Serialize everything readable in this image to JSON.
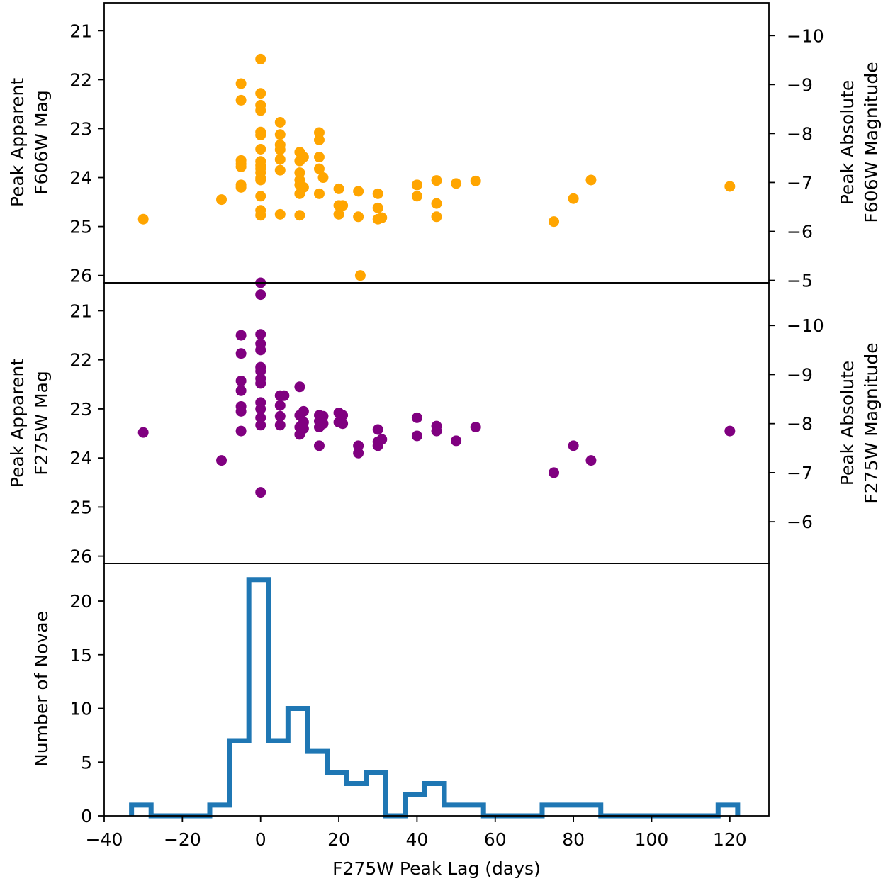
{
  "chart_data": [
    {
      "type": "scatter",
      "ylabel": [
        "Peak Apparent",
        "F606W Mag"
      ],
      "ylabel_right": [
        "Peak Absolute",
        "F606W Magnitude"
      ],
      "ylim": [
        26.15,
        20.43
      ],
      "ylim_right": [
        -4.95,
        -10.67
      ],
      "inverted_y": true,
      "yticks": [
        21,
        22,
        23,
        24,
        25,
        26
      ],
      "yticks_right": [
        -10,
        -9,
        -8,
        -7,
        -6,
        -5
      ],
      "yticks_right_labels": [
        "−10",
        "−9",
        "−8",
        "−7",
        "−6",
        "−5"
      ],
      "color": "#FFA500",
      "points": [
        {
          "x": -30,
          "y": 24.85
        },
        {
          "x": -10,
          "y": 24.45
        },
        {
          "x": -5,
          "y": 22.08
        },
        {
          "x": -5,
          "y": 22.42
        },
        {
          "x": -5,
          "y": 23.65
        },
        {
          "x": -5,
          "y": 23.72
        },
        {
          "x": -5,
          "y": 23.78
        },
        {
          "x": -5,
          "y": 24.15
        },
        {
          "x": -5,
          "y": 24.2
        },
        {
          "x": 0,
          "y": 21.58
        },
        {
          "x": 0,
          "y": 22.28
        },
        {
          "x": 0,
          "y": 22.52
        },
        {
          "x": 0,
          "y": 22.63
        },
        {
          "x": 0,
          "y": 23.07
        },
        {
          "x": 0,
          "y": 23.13
        },
        {
          "x": 0,
          "y": 23.42
        },
        {
          "x": 0,
          "y": 23.67
        },
        {
          "x": 0,
          "y": 23.75
        },
        {
          "x": 0,
          "y": 23.82
        },
        {
          "x": 0,
          "y": 23.9
        },
        {
          "x": 0,
          "y": 24.01
        },
        {
          "x": 0,
          "y": 24.05
        },
        {
          "x": 0,
          "y": 24.38
        },
        {
          "x": 0,
          "y": 24.67
        },
        {
          "x": 0,
          "y": 24.77
        },
        {
          "x": 5,
          "y": 22.87
        },
        {
          "x": 5,
          "y": 23.12
        },
        {
          "x": 5,
          "y": 23.33
        },
        {
          "x": 5,
          "y": 23.43
        },
        {
          "x": 5,
          "y": 23.63
        },
        {
          "x": 5,
          "y": 23.85
        },
        {
          "x": 5,
          "y": 24.75
        },
        {
          "x": 10,
          "y": 23.48
        },
        {
          "x": 10,
          "y": 23.66
        },
        {
          "x": 10,
          "y": 23.9
        },
        {
          "x": 10,
          "y": 24.05
        },
        {
          "x": 10,
          "y": 24.15
        },
        {
          "x": 10,
          "y": 24.33
        },
        {
          "x": 10,
          "y": 24.77
        },
        {
          "x": 11,
          "y": 23.58
        },
        {
          "x": 11,
          "y": 24.2
        },
        {
          "x": 15,
          "y": 23.08
        },
        {
          "x": 15,
          "y": 23.23
        },
        {
          "x": 15,
          "y": 23.58
        },
        {
          "x": 15,
          "y": 23.82
        },
        {
          "x": 15,
          "y": 24.33
        },
        {
          "x": 16,
          "y": 24.0
        },
        {
          "x": 20,
          "y": 24.23
        },
        {
          "x": 20,
          "y": 24.57
        },
        {
          "x": 20,
          "y": 24.75
        },
        {
          "x": 21,
          "y": 24.57
        },
        {
          "x": 25,
          "y": 24.28
        },
        {
          "x": 25,
          "y": 24.8
        },
        {
          "x": 25.5,
          "y": 26.0
        },
        {
          "x": 30,
          "y": 24.33
        },
        {
          "x": 30,
          "y": 24.62
        },
        {
          "x": 30,
          "y": 24.85
        },
        {
          "x": 31,
          "y": 24.82
        },
        {
          "x": 40,
          "y": 24.15
        },
        {
          "x": 40,
          "y": 24.38
        },
        {
          "x": 45,
          "y": 24.06
        },
        {
          "x": 45,
          "y": 24.53
        },
        {
          "x": 45,
          "y": 24.8
        },
        {
          "x": 50,
          "y": 24.12
        },
        {
          "x": 55,
          "y": 24.07
        },
        {
          "x": 75,
          "y": 24.9
        },
        {
          "x": 80,
          "y": 24.43
        },
        {
          "x": 84.5,
          "y": 24.05
        },
        {
          "x": 120,
          "y": 24.18
        }
      ]
    },
    {
      "type": "scatter",
      "ylabel": [
        "Peak Apparent",
        "F275W Mag"
      ],
      "ylabel_right": [
        "Peak Absolute",
        "F275W Magnitude"
      ],
      "ylim": [
        26.15,
        20.43
      ],
      "ylim_right": [
        -5.15,
        -10.87
      ],
      "inverted_y": true,
      "yticks": [
        21,
        22,
        23,
        24,
        25,
        26
      ],
      "yticks_right": [
        -10,
        -9,
        -8,
        -7,
        -6
      ],
      "yticks_right_labels": [
        "−10",
        "−9",
        "−8",
        "−7",
        "−6"
      ],
      "color": "#800080",
      "points": [
        {
          "x": -30,
          "y": 23.48
        },
        {
          "x": -10,
          "y": 24.05
        },
        {
          "x": -5,
          "y": 21.5
        },
        {
          "x": -5,
          "y": 21.87
        },
        {
          "x": -5,
          "y": 22.43
        },
        {
          "x": -5,
          "y": 22.63
        },
        {
          "x": -5,
          "y": 22.95
        },
        {
          "x": -5,
          "y": 23.05
        },
        {
          "x": -5,
          "y": 23.45
        },
        {
          "x": 0,
          "y": 20.43
        },
        {
          "x": 0,
          "y": 20.67
        },
        {
          "x": 0,
          "y": 21.48
        },
        {
          "x": 0,
          "y": 21.67
        },
        {
          "x": 0,
          "y": 21.8
        },
        {
          "x": 0,
          "y": 22.15
        },
        {
          "x": 0,
          "y": 22.23
        },
        {
          "x": 0,
          "y": 22.38
        },
        {
          "x": 0,
          "y": 22.48
        },
        {
          "x": 0,
          "y": 22.87
        },
        {
          "x": 0,
          "y": 23.0
        },
        {
          "x": 0,
          "y": 23.18
        },
        {
          "x": 0,
          "y": 23.33
        },
        {
          "x": 0,
          "y": 24.7
        },
        {
          "x": 5,
          "y": 22.73
        },
        {
          "x": 5,
          "y": 22.93
        },
        {
          "x": 5,
          "y": 23.15
        },
        {
          "x": 5,
          "y": 23.33
        },
        {
          "x": 6,
          "y": 22.73
        },
        {
          "x": 10,
          "y": 22.55
        },
        {
          "x": 10,
          "y": 23.13
        },
        {
          "x": 10,
          "y": 23.37
        },
        {
          "x": 10,
          "y": 23.52
        },
        {
          "x": 11,
          "y": 23.05
        },
        {
          "x": 11,
          "y": 23.27
        },
        {
          "x": 11,
          "y": 23.4
        },
        {
          "x": 15,
          "y": 23.13
        },
        {
          "x": 15,
          "y": 23.25
        },
        {
          "x": 15,
          "y": 23.37
        },
        {
          "x": 15,
          "y": 23.75
        },
        {
          "x": 16,
          "y": 23.15
        },
        {
          "x": 16,
          "y": 23.3
        },
        {
          "x": 20,
          "y": 23.08
        },
        {
          "x": 20,
          "y": 23.27
        },
        {
          "x": 21,
          "y": 23.13
        },
        {
          "x": 21,
          "y": 23.3
        },
        {
          "x": 25,
          "y": 23.75
        },
        {
          "x": 25,
          "y": 23.9
        },
        {
          "x": 30,
          "y": 23.42
        },
        {
          "x": 30,
          "y": 23.67
        },
        {
          "x": 30,
          "y": 23.75
        },
        {
          "x": 31,
          "y": 23.62
        },
        {
          "x": 40,
          "y": 23.18
        },
        {
          "x": 40,
          "y": 23.55
        },
        {
          "x": 45,
          "y": 23.35
        },
        {
          "x": 45,
          "y": 23.45
        },
        {
          "x": 50,
          "y": 23.65
        },
        {
          "x": 55,
          "y": 23.37
        },
        {
          "x": 75,
          "y": 24.3
        },
        {
          "x": 80,
          "y": 23.75
        },
        {
          "x": 84.5,
          "y": 24.05
        },
        {
          "x": 120,
          "y": 23.45
        }
      ]
    },
    {
      "type": "histogram",
      "xlabel": "F275W Peak Lag (days)",
      "ylabel": "Number of Novae",
      "xlim": [
        -40,
        130
      ],
      "ylim": [
        0,
        23.5
      ],
      "xticks": [
        -40,
        -20,
        0,
        20,
        40,
        60,
        80,
        100,
        120
      ],
      "xtick_labels": [
        "−40",
        "−20",
        "0",
        "20",
        "40",
        "60",
        "80",
        "100",
        "120"
      ],
      "yticks": [
        0,
        5,
        10,
        15,
        20
      ],
      "color": "#1f77b4",
      "bin_edges": [
        -33,
        -28,
        -23,
        -18,
        -13,
        -8,
        -3,
        2,
        7,
        12,
        17,
        22,
        27,
        32,
        37,
        42,
        47,
        52,
        57,
        62,
        67,
        72,
        77,
        82,
        87,
        92,
        97,
        102,
        107,
        112,
        117,
        122
      ],
      "counts": [
        1,
        0,
        0,
        0,
        1,
        7,
        22,
        7,
        10,
        6,
        4,
        3,
        4,
        0,
        2,
        3,
        1,
        1,
        0,
        0,
        0,
        1,
        1,
        1,
        0,
        0,
        0,
        0,
        0,
        0,
        1
      ]
    }
  ]
}
